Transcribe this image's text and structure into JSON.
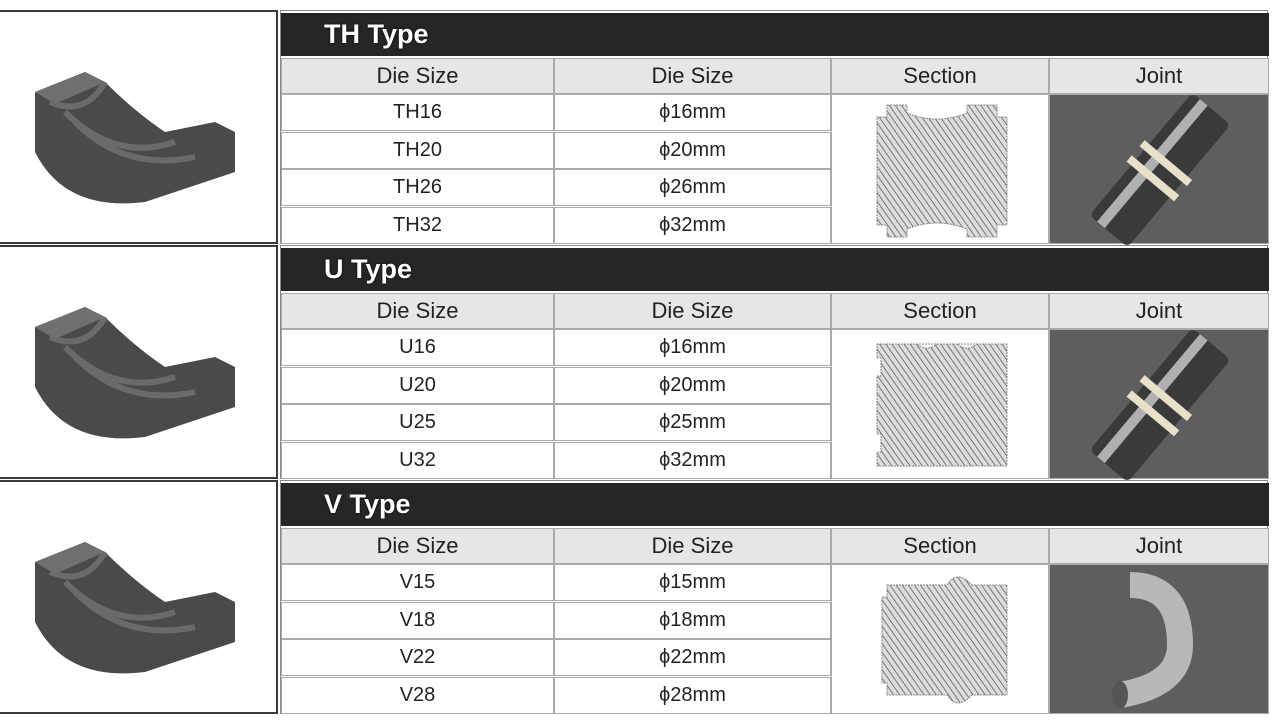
{
  "sections": [
    {
      "title": "TH Type",
      "headers": [
        "Die Size",
        "Die Size",
        "Section",
        "Joint"
      ],
      "rows": [
        [
          "TH16",
          "ϕ16mm"
        ],
        [
          "TH20",
          "ϕ20mm"
        ],
        [
          "TH26",
          "ϕ26mm"
        ],
        [
          "TH32",
          "ϕ32mm"
        ]
      ],
      "die_image": "th-die",
      "section_shape": "th-profile",
      "joint_image": "straight-coupling"
    },
    {
      "title": "U Type",
      "headers": [
        "Die Size",
        "Die Size",
        "Section",
        "Joint"
      ],
      "rows": [
        [
          "U16",
          "ϕ16mm"
        ],
        [
          "U20",
          "ϕ20mm"
        ],
        [
          "U25",
          "ϕ25mm"
        ],
        [
          "U32",
          "ϕ32mm"
        ]
      ],
      "die_image": "u-die",
      "section_shape": "u-profile",
      "joint_image": "straight-coupling"
    },
    {
      "title": "V Type",
      "headers": [
        "Die Size",
        "Die Size",
        "Section",
        "Joint"
      ],
      "rows": [
        [
          "V15",
          "ϕ15mm"
        ],
        [
          "V18",
          "ϕ18mm"
        ],
        [
          "V22",
          "ϕ22mm"
        ],
        [
          "V28",
          "ϕ28mm"
        ]
      ],
      "die_image": "v-die",
      "section_shape": "v-profile",
      "joint_image": "elbow-fitting"
    }
  ],
  "colors": {
    "title_bar": "#262626",
    "header_bg": "#e6e6e6",
    "joint_bg": "#5e5e60",
    "die": "#4a4a4c"
  }
}
